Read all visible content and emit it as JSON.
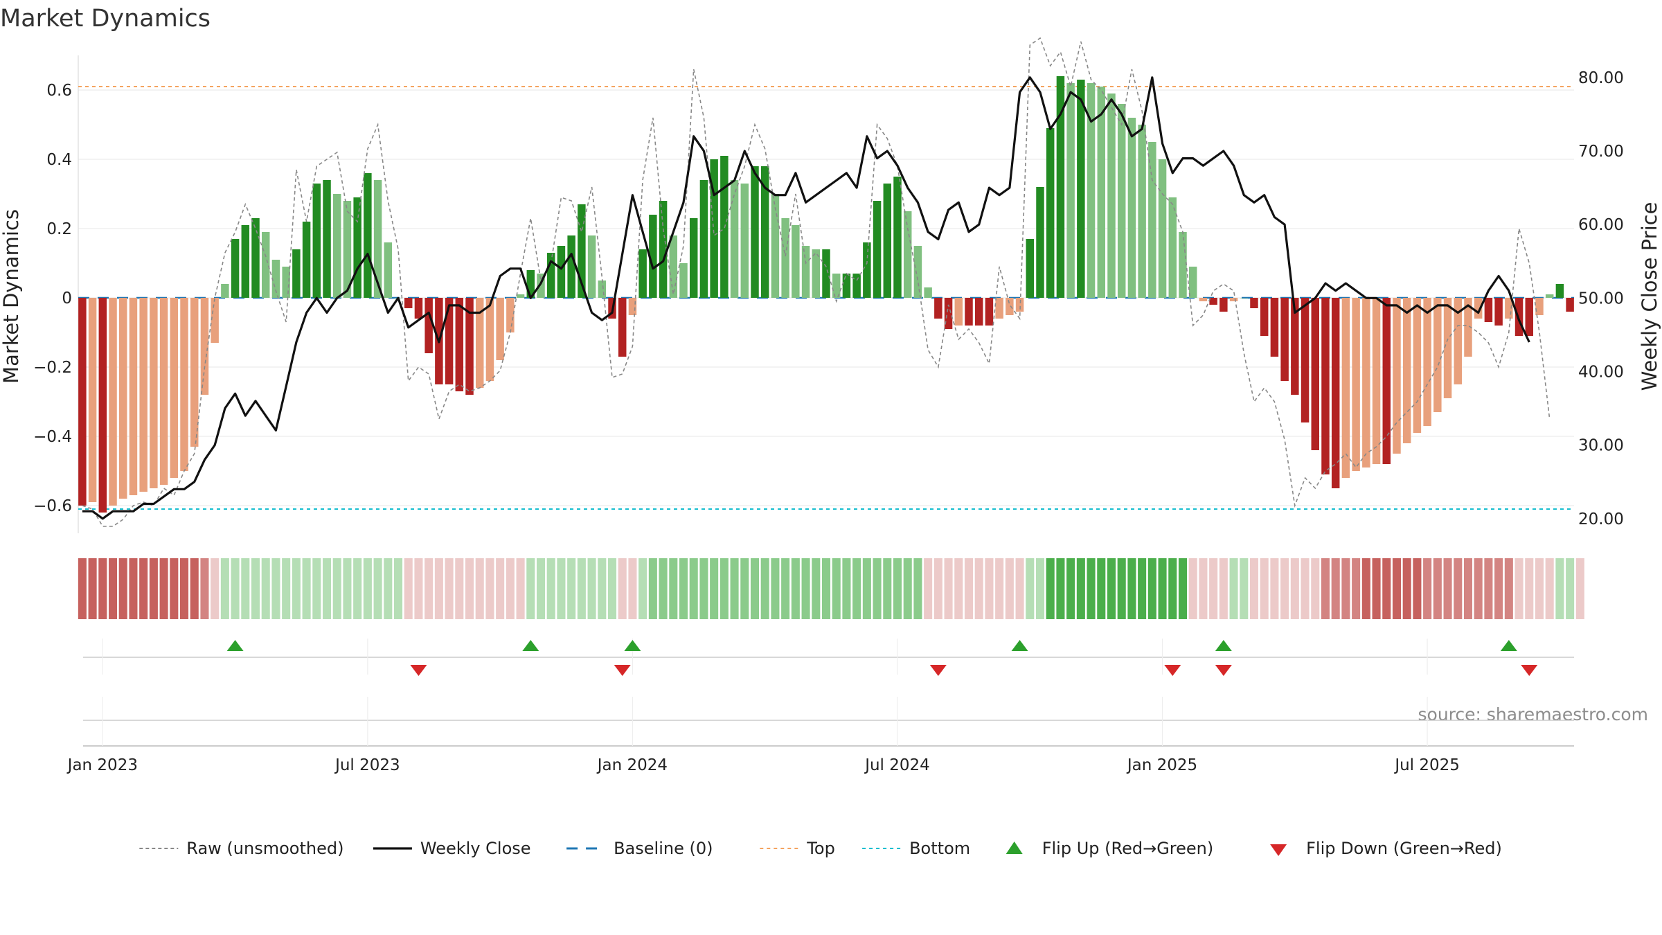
{
  "chart_data": {
    "type": "bar",
    "title": "Market Dynamics",
    "ylabel_left": "Market Dynamics",
    "ylabel_right": "Weekly Close Price",
    "source": "source: sharemaestro.com",
    "ylim_left": [
      -0.68,
      0.7
    ],
    "ylim_right": [
      18,
      83
    ],
    "yticks_left": [
      {
        "v": 0.6,
        "label": "0.6"
      },
      {
        "v": 0.4,
        "label": "0.4"
      },
      {
        "v": 0.2,
        "label": "0.2"
      },
      {
        "v": 0,
        "label": "0"
      },
      {
        "v": -0.2,
        "label": "−0.2"
      },
      {
        "v": -0.4,
        "label": "−0.4"
      },
      {
        "v": -0.6,
        "label": "−0.6"
      }
    ],
    "yticks_right": [
      {
        "v": 80,
        "label": "80.00"
      },
      {
        "v": 70,
        "label": "70.00"
      },
      {
        "v": 60,
        "label": "60.00"
      },
      {
        "v": 50,
        "label": "50.00"
      },
      {
        "v": 40,
        "label": "40.00"
      },
      {
        "v": 30,
        "label": "30.00"
      },
      {
        "v": 20,
        "label": "20.00"
      }
    ],
    "xticks": [
      {
        "week": 2,
        "label": "Jan 2023"
      },
      {
        "week": 28,
        "label": "Jul 2023"
      },
      {
        "week": 54,
        "label": "Jan 2024"
      },
      {
        "week": 80,
        "label": "Jul 2024"
      },
      {
        "week": 106,
        "label": "Jan 2025"
      },
      {
        "week": 132,
        "label": "Jul 2025"
      }
    ],
    "top_level": 0.61,
    "bottom_level": -0.61,
    "baseline": 0,
    "dynamics": [
      -0.6,
      -0.59,
      -0.62,
      -0.6,
      -0.58,
      -0.57,
      -0.56,
      -0.55,
      -0.54,
      -0.52,
      -0.5,
      -0.43,
      -0.28,
      -0.13,
      0.04,
      0.17,
      0.21,
      0.23,
      0.19,
      0.11,
      0.09,
      0.14,
      0.22,
      0.33,
      0.34,
      0.3,
      0.28,
      0.29,
      0.36,
      0.34,
      0.16,
      0,
      -0.03,
      -0.06,
      -0.16,
      -0.25,
      -0.25,
      -0.27,
      -0.28,
      -0.26,
      -0.24,
      -0.18,
      -0.1,
      0.01,
      0.08,
      0.07,
      0.13,
      0.15,
      0.18,
      0.27,
      0.18,
      0.05,
      -0.06,
      -0.17,
      -0.05,
      0.14,
      0.24,
      0.28,
      0.18,
      0.1,
      0.23,
      0.34,
      0.4,
      0.41,
      0.34,
      0.33,
      0.38,
      0.38,
      0.3,
      0.23,
      0.21,
      0.15,
      0.14,
      0.14,
      0.07,
      0.07,
      0.07,
      0.16,
      0.28,
      0.33,
      0.35,
      0.25,
      0.15,
      0.03,
      -0.06,
      -0.09,
      -0.08,
      -0.08,
      -0.08,
      -0.08,
      -0.06,
      -0.05,
      -0.04,
      0.17,
      0.32,
      0.49,
      0.64,
      0.62,
      0.63,
      0.62,
      0.61,
      0.59,
      0.56,
      0.52,
      0.5,
      0.45,
      0.4,
      0.29,
      0.19,
      0.09,
      -0.01,
      -0.02,
      -0.04,
      -0.01,
      0,
      -0.03,
      -0.11,
      -0.17,
      -0.24,
      -0.28,
      -0.36,
      -0.44,
      -0.51,
      -0.55,
      -0.52,
      -0.5,
      -0.49,
      -0.48,
      -0.48,
      -0.45,
      -0.42,
      -0.39,
      -0.37,
      -0.33,
      -0.29,
      -0.25,
      -0.17,
      -0.06,
      -0.07,
      -0.08,
      -0.06,
      -0.11,
      -0.11,
      -0.05,
      0.01,
      0.04,
      -0.04
    ],
    "raw": [
      -0.6,
      -0.61,
      -0.66,
      -0.66,
      -0.64,
      -0.6,
      -0.59,
      -0.6,
      -0.55,
      -0.57,
      -0.5,
      -0.45,
      -0.2,
      0.0,
      0.13,
      0.19,
      0.27,
      0.2,
      0.12,
      0.02,
      -0.07,
      0.37,
      0.22,
      0.38,
      0.4,
      0.42,
      0.25,
      0.22,
      0.43,
      0.5,
      0.28,
      0.14,
      -0.24,
      -0.2,
      -0.22,
      -0.35,
      -0.27,
      -0.25,
      -0.27,
      -0.26,
      -0.24,
      -0.21,
      -0.1,
      0.07,
      0.23,
      0.05,
      0.1,
      0.29,
      0.28,
      0.19,
      0.32,
      0.06,
      -0.23,
      -0.22,
      -0.14,
      0.34,
      0.52,
      0.2,
      0.01,
      0.15,
      0.66,
      0.52,
      0.18,
      0.2,
      0.3,
      0.38,
      0.5,
      0.43,
      0.26,
      0.12,
      0.3,
      0.1,
      0.13,
      0.09,
      -0.01,
      0.07,
      0.05,
      0.1,
      0.5,
      0.46,
      0.38,
      0.2,
      0.05,
      -0.15,
      -0.2,
      -0.02,
      -0.12,
      -0.09,
      -0.13,
      -0.19,
      0.09,
      -0.02,
      -0.06,
      0.73,
      0.75,
      0.67,
      0.71,
      0.61,
      0.74,
      0.63,
      0.6,
      0.55,
      0.5,
      0.66,
      0.54,
      0.34,
      0.3,
      0.27,
      0.19,
      -0.08,
      -0.05,
      0.02,
      0.04,
      0.02,
      -0.16,
      -0.3,
      -0.26,
      -0.3,
      -0.41,
      -0.6,
      -0.52,
      -0.55,
      -0.5,
      -0.48,
      -0.45,
      -0.49,
      -0.45,
      -0.43,
      -0.4,
      -0.36,
      -0.33,
      -0.3,
      -0.25,
      -0.2,
      -0.12,
      -0.08,
      -0.08,
      -0.1,
      -0.13,
      -0.2,
      -0.1,
      0.2,
      0.1,
      -0.1,
      -0.35
    ],
    "weekly_close": [
      21,
      21,
      20,
      21,
      21,
      21,
      22,
      22,
      23,
      24,
      24,
      25,
      28,
      30,
      35,
      37,
      34,
      36,
      34,
      32,
      38,
      44,
      48,
      50,
      48,
      50,
      51,
      54,
      56,
      52,
      48,
      50,
      46,
      47,
      48,
      44,
      49,
      49,
      48,
      48,
      49,
      53,
      54,
      54,
      50,
      52,
      55,
      54,
      56,
      52,
      48,
      47,
      48,
      56,
      64,
      59,
      54,
      55,
      59,
      63,
      72,
      70,
      64,
      65,
      66,
      70,
      67,
      65,
      64,
      64,
      67,
      63,
      64,
      65,
      66,
      67,
      65,
      72,
      69,
      70,
      68,
      65,
      63,
      59,
      58,
      62,
      63,
      59,
      60,
      65,
      64,
      65,
      78,
      80,
      78,
      73,
      75,
      78,
      77,
      74,
      75,
      77,
      75,
      72,
      73,
      80,
      71,
      67,
      69,
      69,
      68,
      69,
      70,
      68,
      64,
      63,
      64,
      61,
      60,
      48,
      49,
      50,
      52,
      51,
      52,
      51,
      50,
      50,
      49,
      49,
      48,
      49,
      48,
      49,
      49,
      48,
      49,
      48,
      51,
      53,
      51,
      47,
      44
    ],
    "zone_strip": [
      -3,
      -3,
      -3,
      -3,
      -3,
      -3,
      -3,
      -3,
      -3,
      -3,
      -3,
      -3,
      -2,
      -1,
      1,
      1,
      1,
      1,
      1,
      1,
      1,
      1,
      1,
      1,
      1,
      1,
      1,
      1,
      1,
      1,
      1,
      1,
      -1,
      -1,
      -1,
      -1,
      -1,
      -1,
      -1,
      -1,
      -1,
      -1,
      -1,
      -1,
      1,
      1,
      1,
      1,
      1,
      1,
      1,
      1,
      1,
      -1,
      -1,
      1,
      2,
      2,
      2,
      2,
      2,
      2,
      2,
      2,
      2,
      2,
      2,
      2,
      2,
      2,
      2,
      2,
      2,
      2,
      2,
      2,
      2,
      2,
      2,
      2,
      2,
      2,
      2,
      -1,
      -1,
      -1,
      -1,
      -1,
      -1,
      -1,
      -1,
      -1,
      -1,
      1,
      1,
      3,
      3,
      3,
      3,
      3,
      3,
      3,
      3,
      3,
      3,
      3,
      3,
      3,
      3,
      -1,
      -1,
      -1,
      -1,
      1,
      1,
      -1,
      -1,
      -1,
      -1,
      -1,
      -1,
      -1,
      -2,
      -2,
      -2,
      -2,
      -3,
      -3,
      -3,
      -3,
      -3,
      -3,
      -2,
      -2,
      -2,
      -2,
      -2,
      -2,
      -2,
      -2,
      -2,
      -1,
      -1,
      -1,
      -1,
      1,
      1,
      -1
    ],
    "flip_up_weeks": [
      15,
      44,
      54,
      92,
      112,
      140
    ],
    "flip_down_weeks": [
      33,
      53,
      84,
      107,
      112,
      142
    ],
    "colors": {
      "strong_green": "#228b22",
      "light_green": "#80c080",
      "strong_red": "#b22222",
      "light_red": "#e8a07c",
      "top_line": "#f4a460",
      "bottom_line": "#17becf",
      "baseline": "#1f77b4",
      "raw": "#888888",
      "close": "#111111",
      "flip_up": "#2ca02c",
      "flip_down": "#d62728"
    },
    "legend": [
      {
        "label": "Raw (unsmoothed)",
        "style": "raw"
      },
      {
        "label": "Weekly Close",
        "style": "close"
      },
      {
        "label": "Baseline (0)",
        "style": "baseline"
      },
      {
        "label": "Top",
        "style": "top"
      },
      {
        "label": "Bottom",
        "style": "bottom"
      },
      {
        "label": "Flip Up (Red→Green)",
        "style": "flip_up"
      },
      {
        "label": "Flip Down (Green→Red)",
        "style": "flip_down"
      }
    ],
    "legend_position": "bottom-center",
    "grid": true
  }
}
